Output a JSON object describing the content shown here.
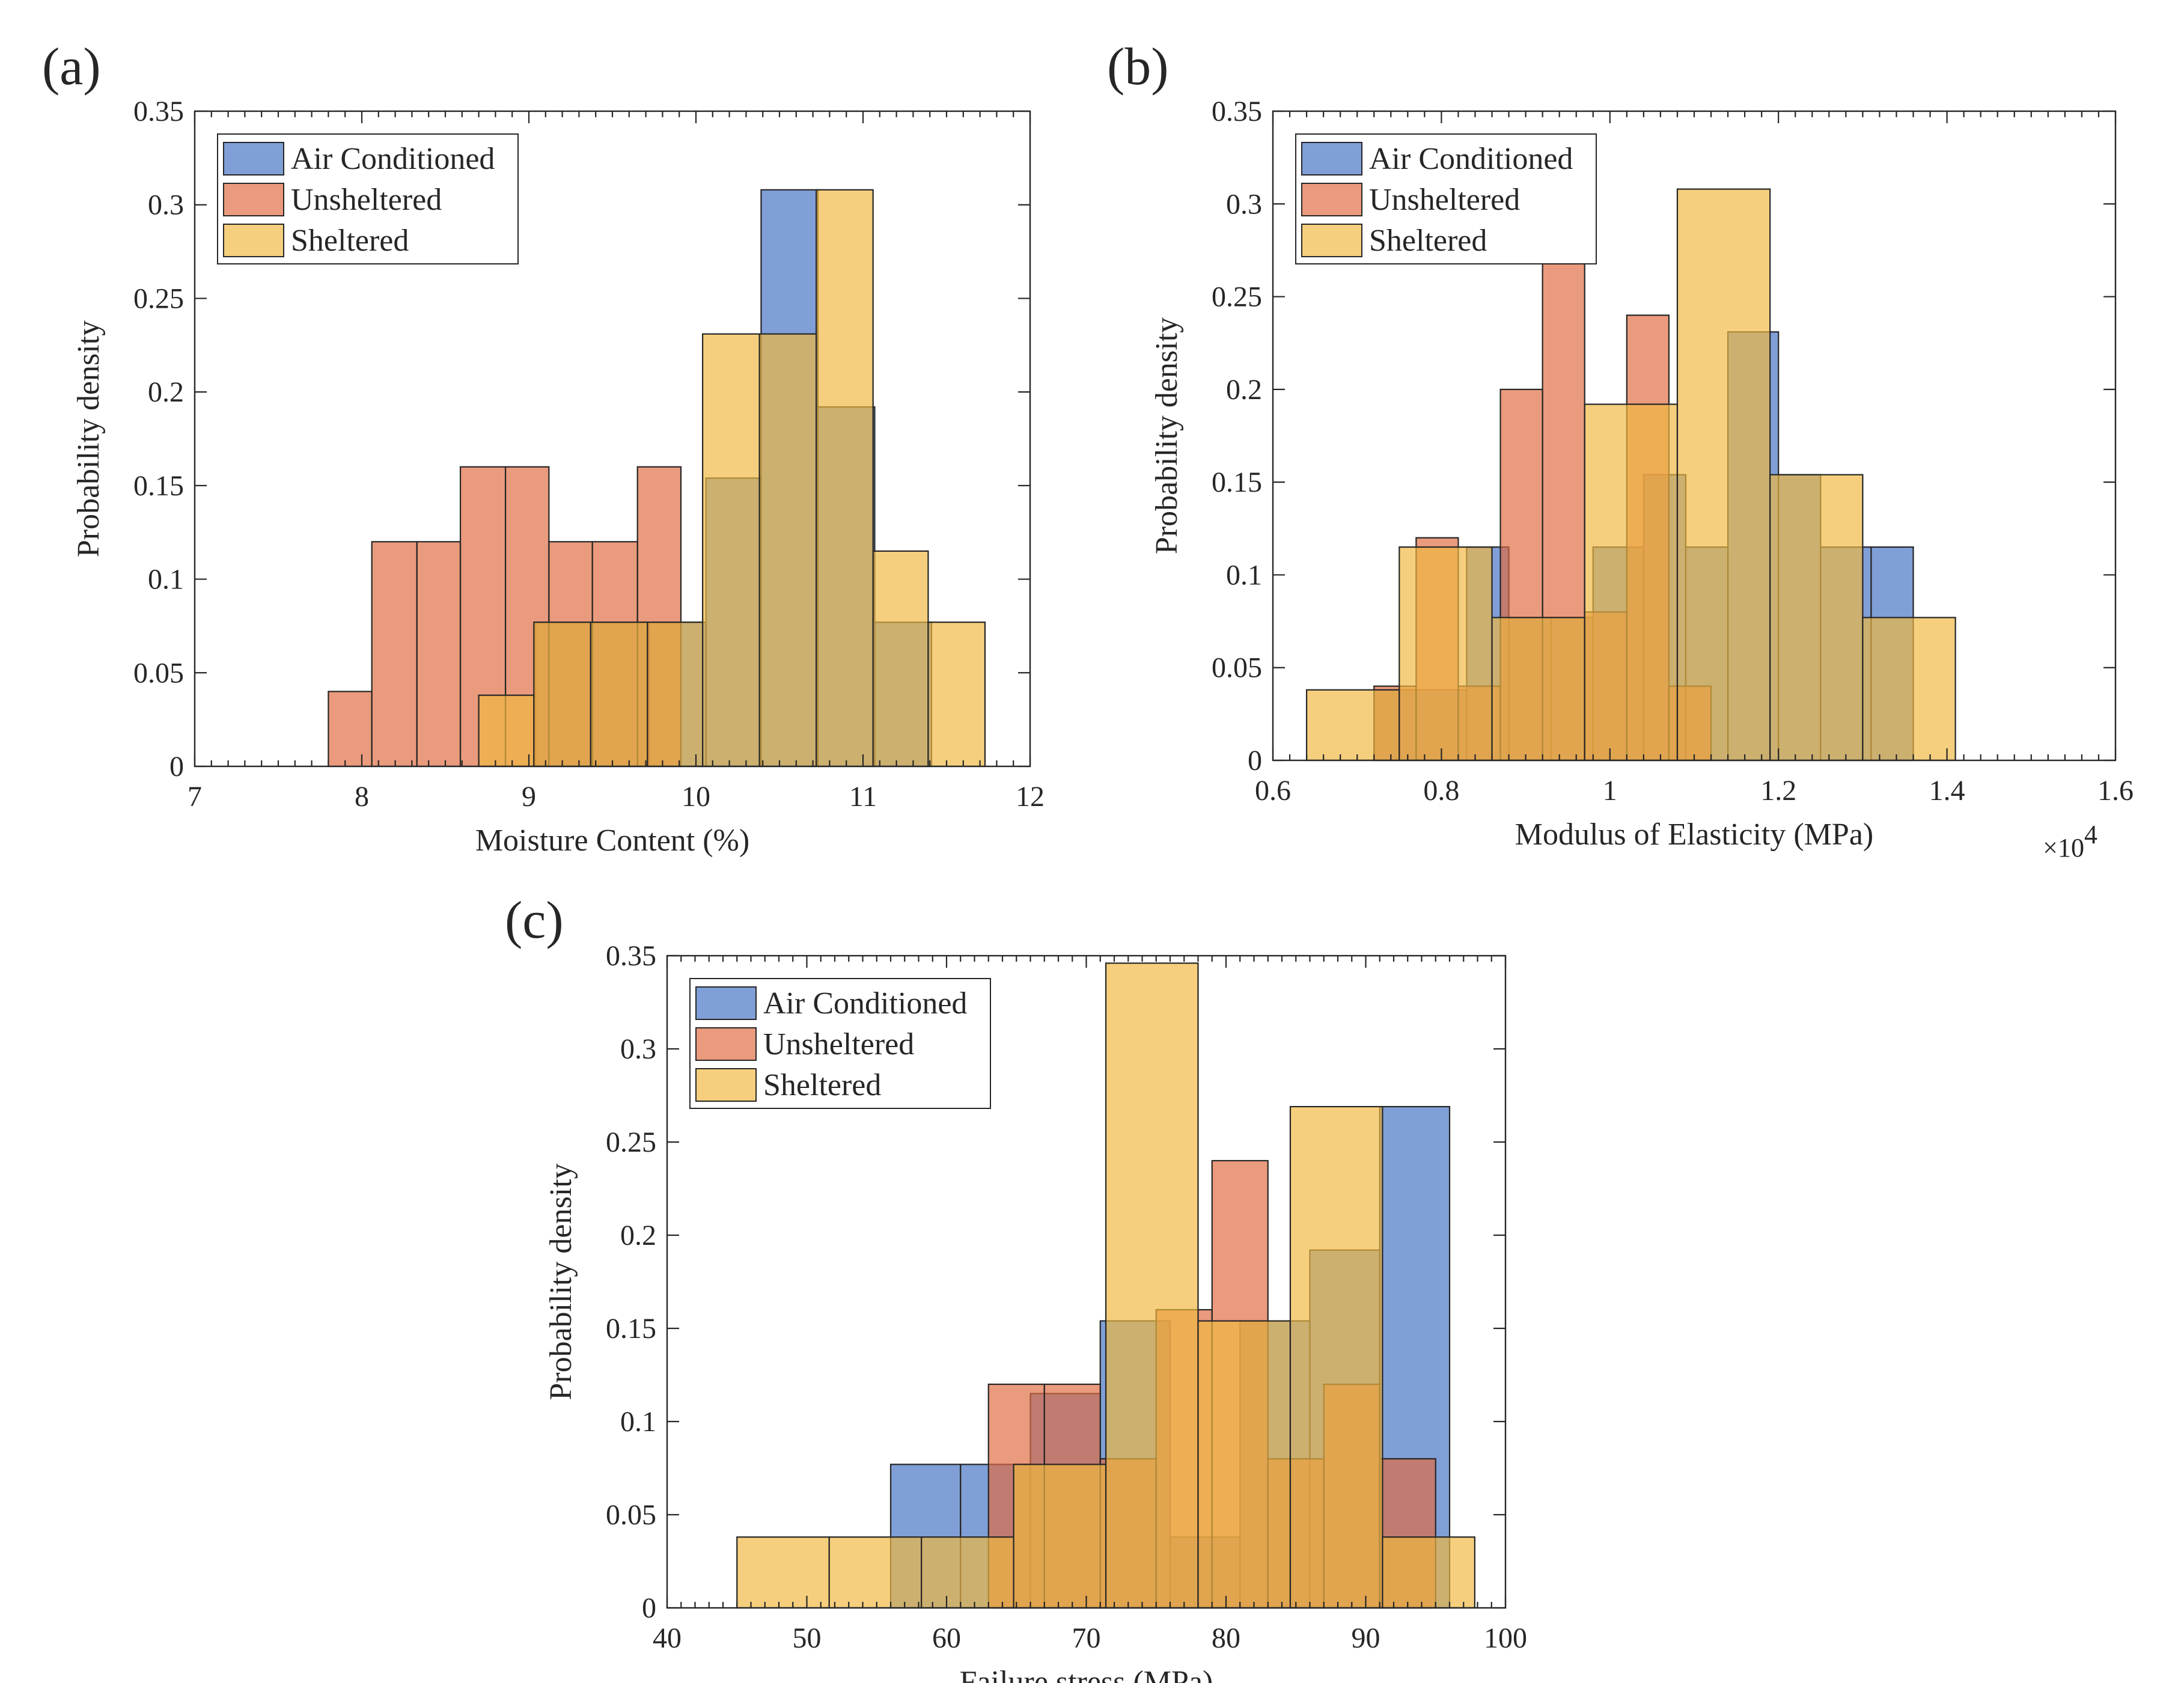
{
  "colors": {
    "Air Conditioned": "#4472c4",
    "Unsheltered": "#e06a3f",
    "Sheltered": "#f0b840",
    "axis": "#262626"
  },
  "chart_data": [
    {
      "id": "a",
      "panel_label": "(a)",
      "type": "bar",
      "subtype": "histogram",
      "xlabel": "Moisture Content (%)",
      "ylabel": "Probability density",
      "xlim": [
        7,
        12
      ],
      "ylim": [
        0,
        0.35
      ],
      "xticks": [
        7,
        8,
        9,
        10,
        11,
        12
      ],
      "xtick_labels": [
        "7",
        "8",
        "9",
        "10",
        "11",
        "12"
      ],
      "yticks": [
        0,
        0.05,
        0.1,
        0.15,
        0.2,
        0.25,
        0.3,
        0.35
      ],
      "ytick_labels": [
        "0",
        "0.05",
        "0.1",
        "0.15",
        "0.2",
        "0.25",
        "0.3",
        "0.35"
      ],
      "exponent_label": "",
      "legend": {
        "position": "top-left",
        "entries": [
          "Air Conditioned",
          "Unsheltered",
          "Sheltered"
        ]
      },
      "series": [
        {
          "name": "Air Conditioned",
          "edges": [
            9.04,
            9.38,
            9.72,
            10.06,
            10.39,
            10.73,
            11.07,
            11.41
          ],
          "values": [
            0.077,
            0.077,
            0.077,
            0.154,
            0.308,
            0.192,
            0.077
          ]
        },
        {
          "name": "Unsheltered",
          "edges": [
            7.8,
            8.06,
            8.33,
            8.59,
            8.86,
            9.12,
            9.38,
            9.65,
            9.91
          ],
          "values": [
            0.04,
            0.12,
            0.12,
            0.16,
            0.16,
            0.12,
            0.12,
            0.16
          ]
        },
        {
          "name": "Sheltered",
          "edges": [
            8.7,
            9.03,
            9.37,
            9.71,
            10.04,
            10.38,
            10.72,
            11.06,
            11.39,
            11.73
          ],
          "values": [
            0.038,
            0.077,
            0.077,
            0.077,
            0.231,
            0.231,
            0.308,
            0.115,
            0.077
          ]
        }
      ]
    },
    {
      "id": "b",
      "panel_label": "(b)",
      "type": "bar",
      "subtype": "histogram",
      "xlabel": "Modulus of Elasticity (MPa)",
      "ylabel": "Probability density",
      "xlim": [
        0.6,
        1.6
      ],
      "ylim": [
        0,
        0.35
      ],
      "xticks": [
        0.6,
        0.8,
        1,
        1.2,
        1.4,
        1.6
      ],
      "xtick_labels": [
        "0.6",
        "0.8",
        "1",
        "1.2",
        "1.4",
        "1.6"
      ],
      "yticks": [
        0,
        0.05,
        0.1,
        0.15,
        0.2,
        0.25,
        0.3,
        0.35
      ],
      "ytick_labels": [
        "0",
        "0.05",
        "0.1",
        "0.15",
        "0.2",
        "0.25",
        "0.3",
        "0.35"
      ],
      "exponent_label": "×10",
      "exponent_power": "4",
      "legend": {
        "position": "top-left",
        "entries": [
          "Air Conditioned",
          "Unsheltered",
          "Sheltered"
        ]
      },
      "series": [
        {
          "name": "Air Conditioned",
          "edges": [
            0.72,
            0.77,
            0.83,
            0.88,
            0.93,
            0.98,
            1.04,
            1.09,
            1.14,
            1.2,
            1.25,
            1.31,
            1.36
          ],
          "values": [
            0.038,
            0.038,
            0.115,
            0.077,
            0.077,
            0.115,
            0.154,
            0.115,
            0.231,
            0.154,
            0.115,
            0.115
          ]
        },
        {
          "name": "Unsheltered",
          "edges": [
            0.72,
            0.77,
            0.82,
            0.87,
            0.92,
            0.97,
            1.02,
            1.07,
            1.12
          ],
          "values": [
            0.04,
            0.12,
            0.04,
            0.2,
            0.28,
            0.08,
            0.24,
            0.04
          ]
        },
        {
          "name": "Sheltered",
          "edges": [
            0.64,
            0.75,
            0.86,
            0.97,
            1.08,
            1.19,
            1.3,
            1.41
          ],
          "values": [
            0.038,
            0.115,
            0.077,
            0.192,
            0.308,
            0.154,
            0.077
          ]
        }
      ]
    },
    {
      "id": "c",
      "panel_label": "(c)",
      "type": "bar",
      "subtype": "histogram",
      "xlabel": "Failure stress (MPa)",
      "ylabel": "Probability density",
      "xlim": [
        40,
        100
      ],
      "ylim": [
        0,
        0.35
      ],
      "xticks": [
        40,
        50,
        60,
        70,
        80,
        90,
        100
      ],
      "xtick_labels": [
        "40",
        "50",
        "60",
        "70",
        "80",
        "90",
        "100"
      ],
      "yticks": [
        0,
        0.05,
        0.1,
        0.15,
        0.2,
        0.25,
        0.3,
        0.35
      ],
      "ytick_labels": [
        "0",
        "0.05",
        "0.1",
        "0.15",
        "0.2",
        "0.25",
        "0.3",
        "0.35"
      ],
      "exponent_label": "",
      "legend": {
        "position": "top-left",
        "entries": [
          "Air Conditioned",
          "Unsheltered",
          "Sheltered"
        ]
      },
      "series": [
        {
          "name": "Air Conditioned",
          "edges": [
            56,
            61,
            66,
            71,
            76,
            81,
            86,
            91,
            96
          ],
          "values": [
            0.077,
            0.077,
            0.115,
            0.154,
            0.038,
            0.154,
            0.192,
            0.269
          ]
        },
        {
          "name": "Unsheltered",
          "edges": [
            63,
            67,
            71,
            75,
            79,
            83,
            87,
            91,
            95
          ],
          "values": [
            0.12,
            0.12,
            0.08,
            0.16,
            0.24,
            0.08,
            0.12,
            0.08
          ]
        },
        {
          "name": "Sheltered",
          "edges": [
            45,
            51.6,
            58.2,
            64.8,
            71.4,
            78,
            84.6,
            91.2,
            97.8
          ],
          "values": [
            0.038,
            0.038,
            0.038,
            0.077,
            0.346,
            0.154,
            0.269,
            0.038
          ]
        }
      ]
    }
  ]
}
